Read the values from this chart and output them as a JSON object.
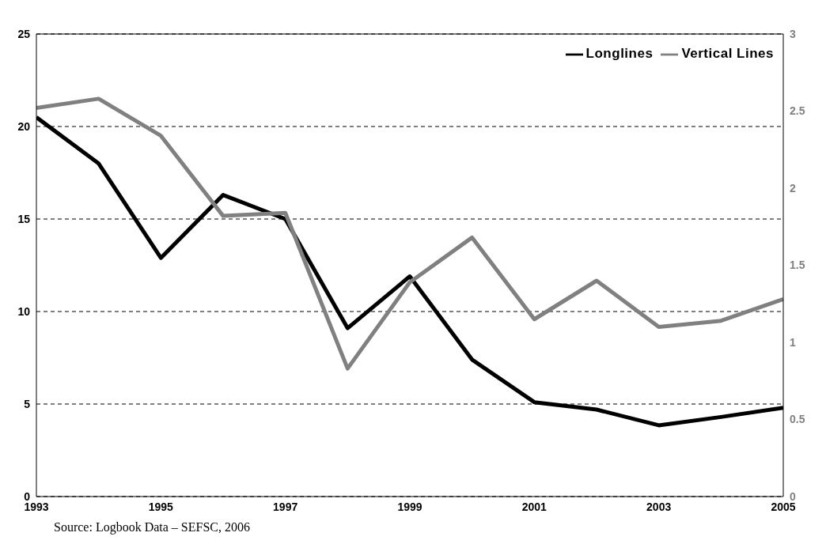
{
  "chart_data": {
    "type": "line",
    "x": [
      1993,
      1994,
      1995,
      1996,
      1997,
      1998,
      1999,
      2000,
      2001,
      2002,
      2003,
      2004,
      2005
    ],
    "series": [
      {
        "name": "Longlines",
        "color": "#000000",
        "values": [
          20.5,
          18.0,
          12.9,
          16.3,
          15.0,
          9.1,
          11.9,
          7.4,
          5.1,
          4.7,
          3.85,
          4.3,
          4.8
        ]
      },
      {
        "name": "Vertical Lines",
        "color": "#808080",
        "axis": "y2",
        "values": [
          2.52,
          2.58,
          2.34,
          1.82,
          1.84,
          0.83,
          1.39,
          1.68,
          1.15,
          1.4,
          1.1,
          1.14,
          1.28
        ]
      }
    ],
    "xlim": [
      1993,
      2005
    ],
    "xticks": [
      1993,
      1995,
      1997,
      1999,
      2001,
      2003,
      2005
    ],
    "ylim": [
      0,
      25
    ],
    "yticks": [
      0,
      5,
      10,
      15,
      20,
      25
    ],
    "y2lim": [
      0,
      3
    ],
    "y2ticks": [
      0,
      0.5,
      1,
      1.5,
      2,
      2.5,
      3
    ],
    "grid": "y",
    "line_style": "solid",
    "legend": "top right",
    "annotations": [
      "Source: Logbook Data – SEFSC, 2006"
    ]
  }
}
